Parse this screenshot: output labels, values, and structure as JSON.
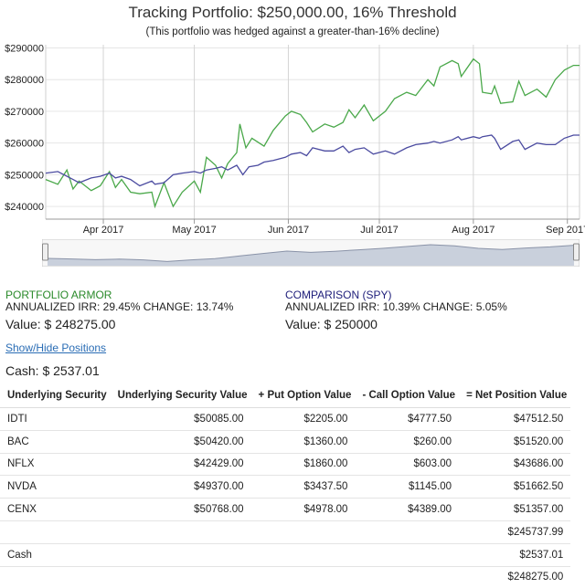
{
  "header": {
    "title": "Tracking Portfolio: $250,000.00, 16% Threshold",
    "subtitle": "(This portfolio was hedged against a greater-than-16% decline)"
  },
  "chart_data": {
    "type": "line",
    "ylim": [
      236000,
      291000
    ],
    "y_ticks": [
      240000,
      250000,
      260000,
      270000,
      280000,
      290000
    ],
    "y_tick_labels": [
      "$240000",
      "$250000",
      "$260000",
      "$270000",
      "$280000",
      "$290000"
    ],
    "x_tick_labels": [
      "Apr 2017",
      "May 2017",
      "Jun 2017",
      "Jul 2017",
      "Aug 2017",
      "Sep 2017"
    ],
    "x_tick_dates": [
      "2017-04-01",
      "2017-05-01",
      "2017-06-01",
      "2017-07-01",
      "2017-08-01",
      "2017-09-01"
    ],
    "x_range": [
      "2017-03-13",
      "2017-09-05"
    ],
    "grid": true,
    "series": [
      {
        "color": "#4aa84a",
        "points": [
          [
            "2017-03-13",
            248500
          ],
          [
            "2017-03-17",
            247000
          ],
          [
            "2017-03-20",
            251500
          ],
          [
            "2017-03-22",
            245500
          ],
          [
            "2017-03-24",
            248000
          ],
          [
            "2017-03-28",
            245000
          ],
          [
            "2017-03-31",
            246500
          ],
          [
            "2017-04-03",
            251000
          ],
          [
            "2017-04-05",
            246000
          ],
          [
            "2017-04-07",
            248500
          ],
          [
            "2017-04-10",
            244500
          ],
          [
            "2017-04-13",
            244000
          ],
          [
            "2017-04-17",
            244500
          ],
          [
            "2017-04-18",
            240000
          ],
          [
            "2017-04-21",
            247500
          ],
          [
            "2017-04-24",
            240000
          ],
          [
            "2017-04-27",
            244500
          ],
          [
            "2017-05-01",
            248000
          ],
          [
            "2017-05-03",
            244500
          ],
          [
            "2017-05-05",
            255500
          ],
          [
            "2017-05-08",
            253000
          ],
          [
            "2017-05-10",
            249000
          ],
          [
            "2017-05-12",
            253500
          ],
          [
            "2017-05-15",
            257000
          ],
          [
            "2017-05-16",
            266000
          ],
          [
            "2017-05-18",
            258500
          ],
          [
            "2017-05-20",
            261500
          ],
          [
            "2017-05-24",
            259000
          ],
          [
            "2017-05-27",
            264000
          ],
          [
            "2017-05-31",
            268500
          ],
          [
            "2017-06-02",
            270000
          ],
          [
            "2017-06-05",
            269000
          ],
          [
            "2017-06-07",
            266500
          ],
          [
            "2017-06-09",
            263500
          ],
          [
            "2017-06-13",
            266000
          ],
          [
            "2017-06-16",
            265000
          ],
          [
            "2017-06-19",
            266500
          ],
          [
            "2017-06-21",
            270500
          ],
          [
            "2017-06-23",
            268000
          ],
          [
            "2017-06-26",
            272000
          ],
          [
            "2017-06-29",
            267000
          ],
          [
            "2017-07-03",
            270000
          ],
          [
            "2017-07-06",
            274000
          ],
          [
            "2017-07-10",
            276000
          ],
          [
            "2017-07-13",
            275000
          ],
          [
            "2017-07-17",
            280000
          ],
          [
            "2017-07-19",
            278000
          ],
          [
            "2017-07-21",
            284000
          ],
          [
            "2017-07-25",
            286000
          ],
          [
            "2017-07-27",
            285000
          ],
          [
            "2017-07-28",
            281000
          ],
          [
            "2017-08-01",
            286500
          ],
          [
            "2017-08-03",
            285000
          ],
          [
            "2017-08-04",
            276000
          ],
          [
            "2017-08-07",
            275500
          ],
          [
            "2017-08-08",
            278000
          ],
          [
            "2017-08-10",
            272500
          ],
          [
            "2017-08-14",
            273000
          ],
          [
            "2017-08-16",
            279500
          ],
          [
            "2017-08-18",
            275000
          ],
          [
            "2017-08-22",
            277000
          ],
          [
            "2017-08-25",
            274500
          ],
          [
            "2017-08-28",
            280000
          ],
          [
            "2017-08-31",
            283000
          ],
          [
            "2017-09-03",
            284500
          ],
          [
            "2017-09-05",
            284500
          ]
        ]
      },
      {
        "color": "#4b4ba0",
        "points": [
          [
            "2017-03-13",
            250500
          ],
          [
            "2017-03-17",
            251000
          ],
          [
            "2017-03-20",
            249500
          ],
          [
            "2017-03-22",
            248500
          ],
          [
            "2017-03-24",
            247500
          ],
          [
            "2017-03-28",
            249000
          ],
          [
            "2017-03-31",
            249500
          ],
          [
            "2017-04-03",
            250500
          ],
          [
            "2017-04-05",
            249000
          ],
          [
            "2017-04-07",
            249500
          ],
          [
            "2017-04-10",
            248500
          ],
          [
            "2017-04-13",
            246500
          ],
          [
            "2017-04-17",
            248000
          ],
          [
            "2017-04-18",
            247000
          ],
          [
            "2017-04-21",
            247500
          ],
          [
            "2017-04-24",
            250000
          ],
          [
            "2017-04-27",
            250500
          ],
          [
            "2017-05-01",
            251000
          ],
          [
            "2017-05-03",
            250500
          ],
          [
            "2017-05-05",
            251500
          ],
          [
            "2017-05-08",
            252000
          ],
          [
            "2017-05-10",
            252500
          ],
          [
            "2017-05-12",
            251500
          ],
          [
            "2017-05-15",
            253000
          ],
          [
            "2017-05-17",
            250000
          ],
          [
            "2017-05-19",
            252500
          ],
          [
            "2017-05-22",
            253000
          ],
          [
            "2017-05-24",
            254000
          ],
          [
            "2017-05-27",
            254500
          ],
          [
            "2017-05-31",
            255500
          ],
          [
            "2017-06-02",
            256500
          ],
          [
            "2017-06-05",
            257000
          ],
          [
            "2017-06-07",
            256000
          ],
          [
            "2017-06-09",
            258500
          ],
          [
            "2017-06-13",
            257500
          ],
          [
            "2017-06-16",
            257500
          ],
          [
            "2017-06-19",
            259000
          ],
          [
            "2017-06-21",
            257000
          ],
          [
            "2017-06-23",
            258000
          ],
          [
            "2017-06-26",
            258500
          ],
          [
            "2017-06-29",
            256500
          ],
          [
            "2017-07-03",
            257500
          ],
          [
            "2017-07-06",
            256500
          ],
          [
            "2017-07-10",
            258500
          ],
          [
            "2017-07-13",
            259500
          ],
          [
            "2017-07-17",
            260000
          ],
          [
            "2017-07-19",
            260500
          ],
          [
            "2017-07-21",
            260000
          ],
          [
            "2017-07-25",
            261000
          ],
          [
            "2017-07-27",
            262000
          ],
          [
            "2017-07-28",
            261000
          ],
          [
            "2017-08-01",
            262000
          ],
          [
            "2017-08-03",
            261500
          ],
          [
            "2017-08-04",
            262000
          ],
          [
            "2017-08-07",
            262500
          ],
          [
            "2017-08-08",
            261500
          ],
          [
            "2017-08-10",
            258000
          ],
          [
            "2017-08-14",
            260500
          ],
          [
            "2017-08-16",
            261000
          ],
          [
            "2017-08-18",
            258000
          ],
          [
            "2017-08-22",
            260000
          ],
          [
            "2017-08-25",
            259500
          ],
          [
            "2017-08-28",
            259500
          ],
          [
            "2017-08-31",
            261500
          ],
          [
            "2017-09-03",
            262500
          ],
          [
            "2017-09-05",
            262500
          ]
        ]
      }
    ]
  },
  "navigator": {
    "fill_color": "#c9d0dc",
    "line_color": "#8a93a8",
    "values": [
      248500,
      247000,
      245000,
      246500,
      244500,
      240000,
      244500,
      248000,
      255000,
      262000,
      268500,
      265000,
      268000,
      272000,
      276000,
      281000,
      286000,
      283000,
      276000,
      273000,
      277000,
      280000,
      284500
    ]
  },
  "portfolio": {
    "name": "PORTFOLIO ARMOR",
    "stats": "ANNUALIZED IRR: 29.45% CHANGE: 13.74%",
    "value": "Value: $ 248275.00"
  },
  "comparison": {
    "name": "COMPARISON (SPY)",
    "stats": "ANNUALIZED IRR: 10.39% CHANGE: 5.05%",
    "value": "Value: $ 250000"
  },
  "toggle_link": "Show/Hide Positions",
  "cash_label": "Cash: $ 2537.01",
  "table": {
    "headers": [
      "Underlying Security",
      "Underlying Security Value",
      "+ Put Option Value",
      "- Call Option Value",
      "= Net Position Value"
    ],
    "rows": [
      [
        "IDTI",
        "$50085.00",
        "$2205.00",
        "$4777.50",
        "$47512.50"
      ],
      [
        "BAC",
        "$50420.00",
        "$1360.00",
        "$260.00",
        "$51520.00"
      ],
      [
        "NFLX",
        "$42429.00",
        "$1860.00",
        "$603.00",
        "$43686.00"
      ],
      [
        "NVDA",
        "$49370.00",
        "$3437.50",
        "$1145.00",
        "$51662.50"
      ],
      [
        "CENX",
        "$50768.00",
        "$4978.00",
        "$4389.00",
        "$51357.00"
      ],
      [
        "",
        "",
        "",
        "",
        "$245737.99"
      ],
      [
        "Cash",
        "",
        "",
        "",
        "$2537.01"
      ],
      [
        "",
        "",
        "",
        "",
        "$248275.00"
      ]
    ]
  }
}
